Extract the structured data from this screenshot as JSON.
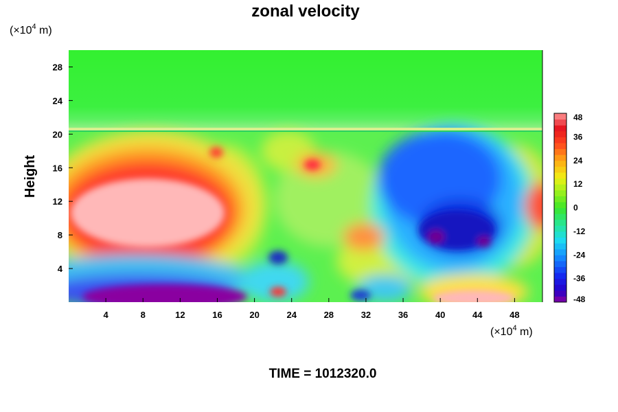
{
  "chart_data": {
    "type": "heatmap",
    "title": "zonal velocity",
    "ylabel": "Height",
    "xlabel": "",
    "x_unit": {
      "prefix": "(×10",
      "exp": "4",
      "suffix": " m)"
    },
    "y_unit": {
      "prefix": "(×10",
      "exp": "4",
      "suffix": " m)"
    },
    "xlim": [
      0,
      51
    ],
    "ylim": [
      0,
      30
    ],
    "x_ticks": [
      4,
      8,
      12,
      16,
      20,
      24,
      28,
      32,
      36,
      40,
      44,
      48
    ],
    "y_ticks": [
      4,
      8,
      12,
      16,
      20,
      24,
      28
    ],
    "colorbar": {
      "min": -48,
      "max": 48,
      "ticks": [
        48,
        36,
        24,
        12,
        0,
        -12,
        -24,
        -36,
        -48
      ]
    },
    "field_features": [
      {
        "name": "upper-layer",
        "x_range": [
          0,
          51
        ],
        "y_range": [
          20.5,
          30
        ],
        "value": -4
      },
      {
        "name": "positive-jet-west",
        "x": 9,
        "y": 10,
        "value": 48
      },
      {
        "name": "positive-core-west",
        "x": 9,
        "y": 10,
        "value": 48
      },
      {
        "name": "negative-jet-east",
        "x": 43,
        "y": 12,
        "value": -30
      },
      {
        "name": "negative-core-east",
        "x": 43,
        "y": 9,
        "value": -42
      },
      {
        "name": "surface-negative-west",
        "x": 12,
        "y": 1,
        "value": -48
      },
      {
        "name": "surface-positive-east",
        "x": 44,
        "y": 0.8,
        "value": 48
      },
      {
        "name": "positive-blob-upper-center",
        "x": 26,
        "y": 16.5,
        "value": 36
      },
      {
        "name": "negative-blob-lower-center",
        "x": 22.5,
        "y": 5,
        "value": -36
      }
    ]
  },
  "footer": {
    "time_text": "TIME = 1012320.0"
  }
}
